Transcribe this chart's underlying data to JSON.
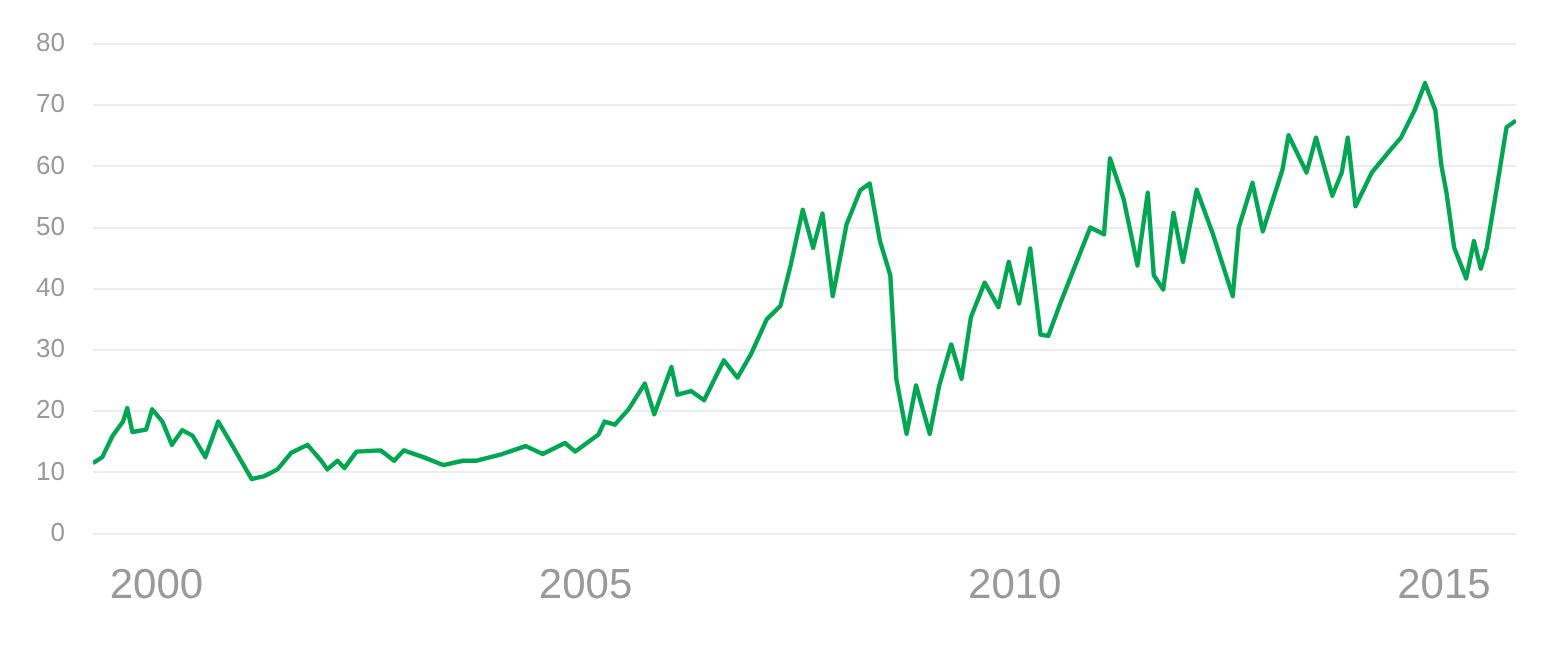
{
  "chart_data": {
    "type": "line",
    "x": [
      1999.26,
      1999.37,
      1999.49,
      1999.61,
      1999.66,
      1999.72,
      1999.88,
      1999.95,
      2000.07,
      2000.18,
      2000.3,
      2000.42,
      2000.57,
      2000.72,
      2000.88,
      2001.11,
      2001.26,
      2001.41,
      2001.57,
      2001.76,
      2001.92,
      2001.99,
      2002.11,
      2002.19,
      2002.33,
      2002.61,
      2002.77,
      2002.88,
      2003.11,
      2003.34,
      2003.57,
      2003.72,
      2004.03,
      2004.3,
      2004.5,
      2004.76,
      2004.88,
      2005.15,
      2005.22,
      2005.34,
      2005.5,
      2005.69,
      2005.8,
      2006.0,
      2006.07,
      2006.23,
      2006.38,
      2006.61,
      2006.77,
      2006.93,
      2007.11,
      2007.27,
      2007.39,
      2007.53,
      2007.65,
      2007.76,
      2007.88,
      2008.04,
      2008.2,
      2008.31,
      2008.43,
      2008.55,
      2008.62,
      2008.74,
      2008.85,
      2009.01,
      2009.12,
      2009.26,
      2009.38,
      2009.49,
      2009.65,
      2009.81,
      2009.93,
      2010.05,
      2010.18,
      2010.3,
      2010.39,
      2010.53,
      2010.69,
      2010.88,
      2011.04,
      2011.11,
      2011.27,
      2011.43,
      2011.55,
      2011.62,
      2011.73,
      2011.85,
      2011.96,
      2012.12,
      2012.31,
      2012.54,
      2012.61,
      2012.77,
      2012.89,
      2013.12,
      2013.19,
      2013.4,
      2013.51,
      2013.7,
      2013.81,
      2013.88,
      2013.97,
      2014.16,
      2014.39,
      2014.5,
      2014.66,
      2014.78,
      2014.9,
      2014.97,
      2015.03,
      2015.12,
      2015.26,
      2015.35,
      2015.43,
      2015.5,
      2015.62,
      2015.73,
      2015.84
    ],
    "series": [
      {
        "color": "#00a651",
        "values": [
          11.5,
          12.5,
          16,
          18.3,
          20.5,
          16.6,
          17,
          20.3,
          18.3,
          14.5,
          16.9,
          16,
          12.5,
          18.3,
          14.5,
          8.9,
          9.4,
          10.5,
          13.2,
          14.5,
          11.9,
          10.5,
          11.9,
          10.7,
          13.4,
          13.6,
          11.9,
          13.6,
          12.5,
          11.2,
          11.9,
          11.9,
          13,
          14.3,
          13,
          14.8,
          13.4,
          16.2,
          18.3,
          17.8,
          20.3,
          24.5,
          19.5,
          27.2,
          22.7,
          23.3,
          21.8,
          28.3,
          25.5,
          29.4,
          35,
          37.2,
          43.9,
          52.9,
          46.7,
          52.3,
          38.8,
          50.5,
          56.1,
          57.2,
          47.8,
          42.2,
          25.3,
          16.3,
          24.2,
          16.3,
          24.2,
          30.9,
          25.3,
          35.4,
          41,
          37,
          44.4,
          37.6,
          46.6,
          32.5,
          32.3,
          37.6,
          43.3,
          50,
          48.9,
          61.3,
          54.6,
          43.8,
          55.7,
          42.2,
          39.9,
          52.4,
          44.4,
          56.2,
          48.9,
          38.8,
          50,
          57.3,
          49.4,
          59.5,
          65.1,
          59,
          64.7,
          55.2,
          59,
          64.7,
          53.5,
          59,
          62.9,
          64.7,
          69.2,
          73.6,
          69.2,
          60.2,
          55.7,
          46.7,
          41.7,
          47.8,
          43.3,
          46.7,
          56.8,
          66.4,
          67.5
        ]
      }
    ],
    "xlim": [
      1999.26,
      2015.84
    ],
    "xticks": [
      2000,
      2005,
      2010,
      2015
    ],
    "ylim": [
      0,
      80
    ],
    "yticks": [
      0,
      10,
      20,
      30,
      40,
      50,
      60,
      70,
      80
    ],
    "grid": "y",
    "marker": "none",
    "line_style": "solid",
    "legend": false
  }
}
